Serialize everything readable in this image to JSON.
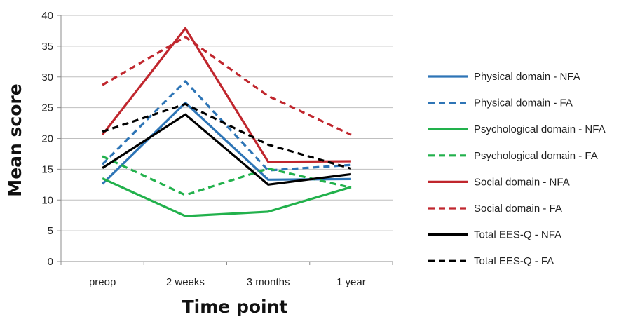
{
  "chart_data": {
    "type": "line",
    "title": "",
    "xlabel": "Time point",
    "ylabel": "Mean score",
    "categories": [
      "preop",
      "2 weeks",
      "3 months",
      "1 year"
    ],
    "ylim": [
      0,
      40
    ],
    "yticks": [
      0,
      5,
      10,
      15,
      20,
      25,
      30,
      35,
      40
    ],
    "grid": true,
    "legend_position": "right",
    "series": [
      {
        "name": "Physical domain - NFA",
        "color": "#2e75b6",
        "dash": "solid",
        "values": [
          12.6,
          25.8,
          13.3,
          13.4
        ]
      },
      {
        "name": "Physical domain - FA",
        "color": "#2e75b6",
        "dash": "dashed",
        "values": [
          15.8,
          29.3,
          14.8,
          15.7
        ]
      },
      {
        "name": "Psychological domain - NFA",
        "color": "#22b14c",
        "dash": "solid",
        "values": [
          13.5,
          7.4,
          8.1,
          12.1
        ]
      },
      {
        "name": "Psychological domain - FA",
        "color": "#22b14c",
        "dash": "dashed",
        "values": [
          17.1,
          10.8,
          15.1,
          12.0
        ]
      },
      {
        "name": "Social domain - NFA",
        "color": "#c0262d",
        "dash": "solid",
        "values": [
          20.6,
          37.9,
          16.2,
          16.3
        ]
      },
      {
        "name": "Social domain - FA",
        "color": "#c0262d",
        "dash": "dashed",
        "values": [
          28.7,
          36.5,
          26.9,
          20.6
        ]
      },
      {
        "name": "Total EES-Q - NFA",
        "color": "#000000",
        "dash": "solid",
        "values": [
          15.2,
          23.9,
          12.5,
          14.2
        ]
      },
      {
        "name": "Total EES-Q - FA",
        "color": "#000000",
        "dash": "dashed",
        "values": [
          21.1,
          25.6,
          19.0,
          15.1
        ]
      }
    ]
  }
}
